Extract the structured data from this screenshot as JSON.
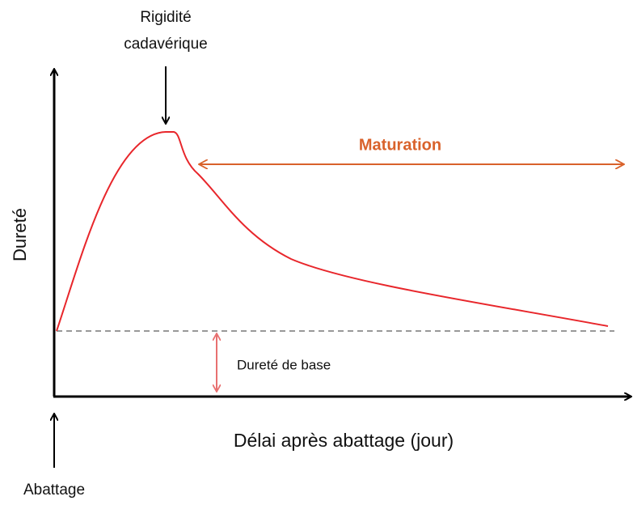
{
  "peak_label": [
    "Rigidité",
    "cadavérique"
  ],
  "maturation_label": "Maturation",
  "y_axis_label": "Dureté",
  "baseline_label": "Dureté de base",
  "x_axis_label": "Délai après abattage (jour)",
  "origin_label": "Abattage"
}
